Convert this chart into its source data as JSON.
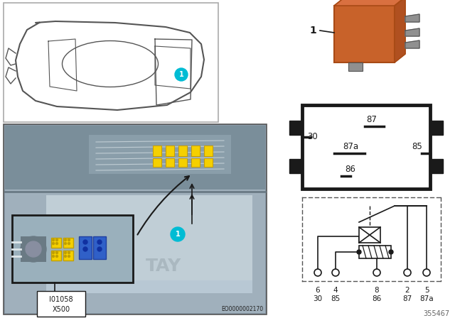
{
  "bg_color": "#ffffff",
  "relay_color": "#c8622a",
  "relay_dark": "#a84a15",
  "relay_light": "#d97040",
  "terminal_color": "#888888",
  "border_color": "#1a1a1a",
  "text_color": "#1a1a1a",
  "gray_text": "#666666",
  "label_1_bg": "#00bcd4",
  "car_line_color": "#555555",
  "photo_bg": "#8a9aa8",
  "photo_mid": "#a0b0bc",
  "photo_light": "#b8c8d4",
  "inset_bg": "#9aacb8",
  "figure_num": "355467",
  "eo_num": "EO0000002170",
  "part_label1": "I01058",
  "part_label2": "X500",
  "pin_top": [
    "6",
    "4",
    "8",
    "2",
    "5"
  ],
  "pin_bot": [
    "30",
    "85",
    "86",
    "87",
    "87a"
  ]
}
